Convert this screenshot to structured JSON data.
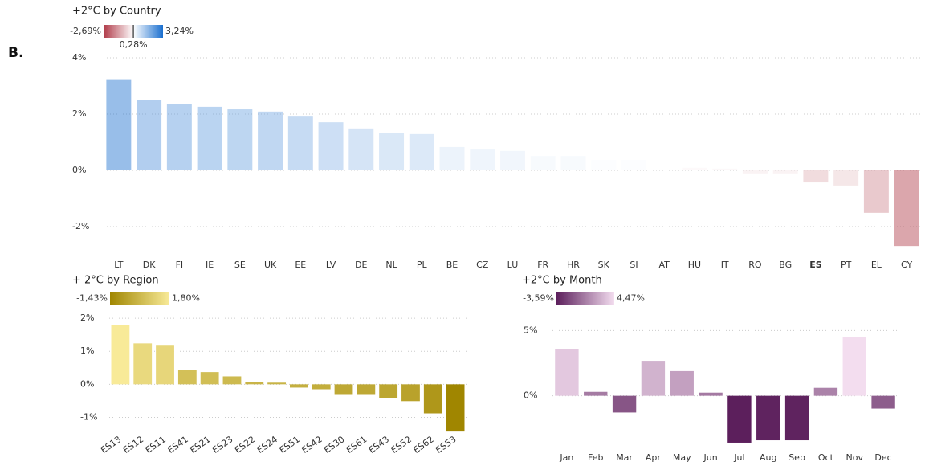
{
  "panel_label": "B.",
  "chart_data": [
    {
      "type": "bar",
      "title": "+2°C by Country",
      "categories": [
        "LT",
        "DK",
        "FI",
        "IE",
        "SE",
        "UK",
        "EE",
        "LV",
        "DE",
        "NL",
        "PL",
        "BE",
        "CZ",
        "LU",
        "FR",
        "HR",
        "SK",
        "SI",
        "AT",
        "HU",
        "IT",
        "RO",
        "BG",
        "ES",
        "PT",
        "EL",
        "CY"
      ],
      "values": [
        3.24,
        2.49,
        2.37,
        2.26,
        2.17,
        2.09,
        1.91,
        1.71,
        1.49,
        1.34,
        1.29,
        0.83,
        0.74,
        0.69,
        0.51,
        0.51,
        0.37,
        0.37,
        0.29,
        0.09,
        0.06,
        -0.11,
        -0.11,
        -0.43,
        -0.54,
        -1.51,
        -2.69
      ],
      "highlight": "ES",
      "ylim": [
        -2.8,
        4.2
      ],
      "yticks": [
        {
          "value": 4,
          "label": "4%"
        },
        {
          "value": 2,
          "label": "2%"
        },
        {
          "value": 0,
          "label": "0%"
        },
        {
          "value": -2,
          "label": "-2%"
        }
      ],
      "grid": true,
      "color_scale": [
        {
          "value": -2.69,
          "label": "-2,69%",
          "color": "#b03a48"
        },
        {
          "value": 0.28,
          "label": "0,28%",
          "color": "#ffffff"
        },
        {
          "value": 3.24,
          "label": "3,24%",
          "color": "#1a6fcf"
        }
      ]
    },
    {
      "type": "bar",
      "title": "+ 2°C by Region",
      "categories": [
        "ES13",
        "ES12",
        "ES11",
        "ES41",
        "ES21",
        "ES23",
        "ES22",
        "ES24",
        "ES51",
        "ES42",
        "ES30",
        "ES61",
        "ES43",
        "ES52",
        "ES62",
        "ES53"
      ],
      "values": [
        1.8,
        1.24,
        1.17,
        0.44,
        0.37,
        0.24,
        0.07,
        0.05,
        -0.1,
        -0.15,
        -0.32,
        -0.32,
        -0.41,
        -0.51,
        -0.88,
        -1.43
      ],
      "ylim": [
        -1.5,
        2.1
      ],
      "yticks": [
        {
          "value": 2,
          "label": "2%"
        },
        {
          "value": 1,
          "label": "1%"
        },
        {
          "value": 0,
          "label": "0%"
        },
        {
          "value": -1,
          "label": "-1%"
        }
      ],
      "grid": true,
      "color_scale": [
        {
          "value": -1.43,
          "label": "-1,43%",
          "color": "#a08600"
        },
        {
          "value": 1.8,
          "label": "1,80%",
          "color": "#f8ea98"
        }
      ]
    },
    {
      "type": "bar",
      "title": "+2°C by Month",
      "categories": [
        "Jan",
        "Feb",
        "Mar",
        "Apr",
        "May",
        "Jun",
        "Jul",
        "Aug",
        "Sep",
        "Oct",
        "Nov",
        "Dec"
      ],
      "values": [
        3.6,
        0.3,
        -1.28,
        2.68,
        1.89,
        0.24,
        -3.59,
        -3.41,
        -3.41,
        0.61,
        4.47,
        -0.98
      ],
      "ylim": [
        -3.9,
        5.7
      ],
      "yticks": [
        {
          "value": 5,
          "label": "5%"
        },
        {
          "value": 0,
          "label": "0%"
        }
      ],
      "grid": true,
      "color_scale": [
        {
          "value": -3.59,
          "label": "-3,59%",
          "color": "#5c1f5c"
        },
        {
          "value": 4.47,
          "label": "4,47%",
          "color": "#f3ddef"
        }
      ]
    }
  ]
}
